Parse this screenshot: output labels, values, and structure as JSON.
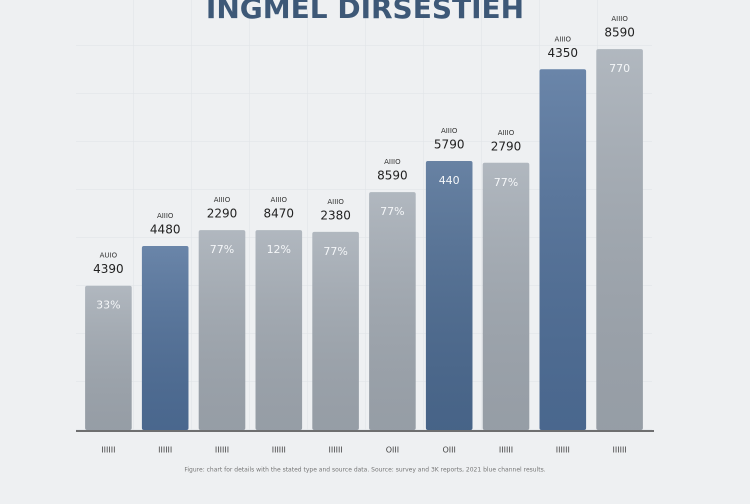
{
  "chart_data": {
    "type": "bar",
    "title": "INGMEL DIRSESTIEH",
    "categories": [
      "IIIIII",
      "IIIIII",
      "IIIIII",
      "IIIIII",
      "IIIIII",
      "OIII",
      "OIII",
      "IIIIII",
      "IIIIII",
      "IIIIII"
    ],
    "values": [
      236,
      301,
      327,
      327,
      324,
      389,
      440,
      437,
      590,
      623
    ],
    "colors": [
      "#a3abb4",
      "#50709a",
      "#a3abb4",
      "#a3abb4",
      "#a3abb4",
      "#a3abb4",
      "#4d6c93",
      "#a3abb4",
      "#50709a",
      "#a3abb4"
    ],
    "small_labels": [
      "AUIO",
      "AIIIO",
      "AIIIO",
      "AIIIO",
      "AIIIO",
      "AIIIO",
      "AIIIO",
      "AIIIO",
      "AIIIO",
      "AIIIO"
    ],
    "top_labels": [
      "4390",
      "4480",
      "2290",
      "8470",
      "2380",
      "8590",
      "5790",
      "2790",
      "4350",
      "8590"
    ],
    "inner_labels": [
      "33%",
      "",
      "77%",
      "12%",
      "77%",
      "77%",
      "440",
      "77%",
      "",
      "770"
    ],
    "footnote": "Figure: chart for details with the stated type and source data. Source: survey and 3K reports, 2021 blue channel results.",
    "ylim": [
      0,
      700
    ],
    "grid": true
  }
}
